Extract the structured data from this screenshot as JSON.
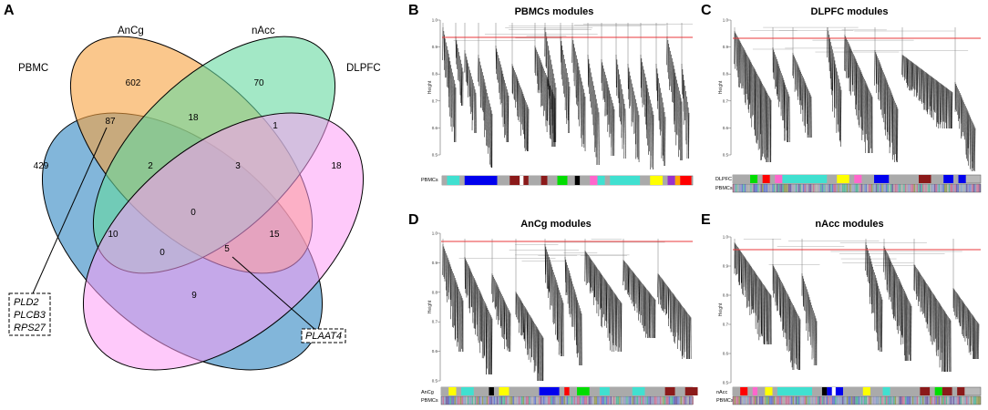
{
  "panels": {
    "A": "A",
    "B": "B",
    "C": "C",
    "D": "D",
    "E": "E"
  },
  "venn": {
    "sets": {
      "pbmc": {
        "name": "PBMC",
        "color": "#3f8fc6"
      },
      "ancg": {
        "name": "AnCg",
        "color": "#f59a3d"
      },
      "nacc": {
        "name": "nAcc",
        "color": "#5fd49a"
      },
      "dlpfc": {
        "name": "DLPFC",
        "color": "#fd9af6"
      }
    },
    "counts": {
      "pbmc_only": "429",
      "ancg_only": "602",
      "nacc_only": "70",
      "dlpfc_only": "18",
      "pbmc_ancg": "87",
      "ancg_nacc": "18",
      "nacc_dlpfc": "1",
      "pbmc_ancg_nacc": "2",
      "ancg_nacc_dlpfc": "3",
      "all_four": "0",
      "pbmc_nacc": "10",
      "pbmc_nacc_dlpfc": "0",
      "pbmc_ancg_dlpfc": "5",
      "ancg_dlpfc": "15",
      "pbmc_dlpfc": "9"
    },
    "callout_left": [
      "PLD2",
      "PLCB3",
      "RPS27"
    ],
    "callout_right": "PLAAT4"
  },
  "dendrograms": {
    "height_label": "Height",
    "ticks": [
      "1.0",
      "0.9",
      "0.8",
      "0.7",
      "0.6",
      "0.5"
    ],
    "B": {
      "title": "PBMCs modules",
      "color_rows": [
        "PBMCs"
      ]
    },
    "C": {
      "title": "DLPFC modules",
      "color_rows": [
        "DLPFC",
        "PBMCs"
      ]
    },
    "D": {
      "title": "AnCg modules",
      "color_rows": [
        "AnCg",
        "PBMCs"
      ]
    },
    "E": {
      "title": "nAcc modules",
      "color_rows": [
        "nAcc",
        "PBMCs"
      ]
    }
  },
  "colors": {
    "cut_line": "#e8383b",
    "tree": "#111111"
  }
}
